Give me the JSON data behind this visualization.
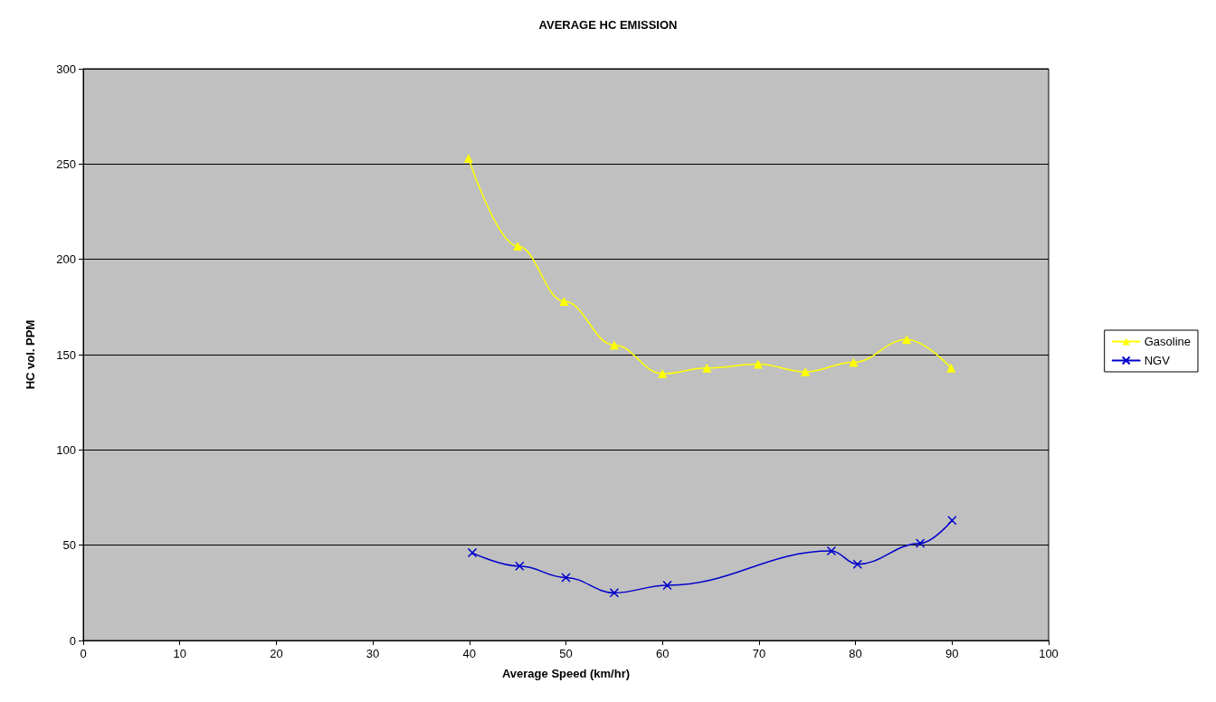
{
  "chart_data": {
    "type": "line",
    "title": "AVERAGE HC EMISSION",
    "xlabel": "Average Speed (km/hr)",
    "ylabel": "HC vol. PPM",
    "xlim": [
      0,
      100
    ],
    "xticks": [
      0,
      10,
      20,
      30,
      40,
      50,
      60,
      70,
      80,
      90,
      100
    ],
    "ylim": [
      0,
      300
    ],
    "yticks": [
      0,
      50,
      100,
      150,
      200,
      250,
      300
    ],
    "grid": "y",
    "legend": "right",
    "series": [
      {
        "name": "Gasoline",
        "color": "#ffff00",
        "marker": "triangle",
        "x": [
          39.9,
          45.0,
          49.8,
          55.0,
          60.0,
          64.6,
          69.9,
          74.8,
          79.8,
          85.3,
          89.9
        ],
        "values": [
          253,
          207,
          178,
          155,
          140,
          143,
          145,
          141,
          146,
          158,
          143
        ]
      },
      {
        "name": "NGV",
        "color": "#0000cc",
        "marker": "cross",
        "x": [
          40.3,
          45.2,
          50.0,
          55.0,
          60.5,
          77.5,
          80.2,
          86.7,
          90.0
        ],
        "values": [
          46,
          39,
          33,
          25,
          29,
          47,
          40,
          51,
          63
        ]
      }
    ]
  }
}
